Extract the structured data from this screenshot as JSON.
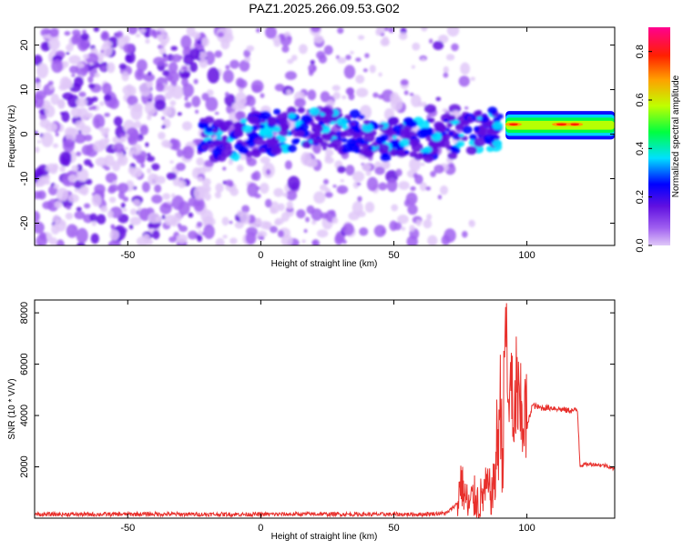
{
  "title": "PAZ1.2025.266.09.53.G02",
  "chart_data": [
    {
      "type": "heatmap",
      "title": "PAZ1.2025.266.09.53.G02",
      "xlabel": "Height of straight line (km)",
      "ylabel": "Frequency (Hz)",
      "xlim": [
        -85,
        133
      ],
      "ylim": [
        -25,
        24
      ],
      "xticks": [
        -50,
        0,
        50,
        100
      ],
      "yticks": [
        -20,
        -10,
        0,
        10,
        20
      ],
      "colorbar": {
        "label": "Normalized spectral amplitude",
        "range": [
          0,
          0.9
        ],
        "ticks": [
          0.0,
          0.2,
          0.4,
          0.6,
          0.8
        ],
        "colormap": [
          "#e0c8f8",
          "#a060f0",
          "#6010e0",
          "#0000ff",
          "#00e0ff",
          "#00ff40",
          "#c0ff00",
          "#ffa000",
          "#ff2000",
          "#ff0090"
        ]
      },
      "description_series": [
        {
          "name": "",
          "x": [
            -85,
            -20,
            20,
            60,
            80,
            90,
            100,
            110,
            120,
            133
          ],
          "y": [
            0,
            1,
            -1,
            0,
            2,
            3,
            2,
            2,
            2,
            2
          ]
        }
      ]
    },
    {
      "type": "line",
      "xlabel": "Height of straight line (km)",
      "ylabel": "SNR (10 * V/V)",
      "xlim": [
        -85,
        133
      ],
      "ylim": [
        0,
        8500
      ],
      "xticks": [
        -50,
        0,
        50,
        100
      ],
      "yticks": [
        2000,
        4000,
        6000,
        8000
      ],
      "color": "#e8302c",
      "series": [
        {
          "name": "",
          "x": [
            -85,
            -60,
            -40,
            -20,
            0,
            20,
            40,
            60,
            70,
            74,
            75,
            78,
            80,
            82,
            85,
            87,
            89,
            90,
            91,
            92,
            93,
            94,
            95,
            96,
            97,
            98,
            99,
            100,
            102,
            105,
            110,
            115,
            118,
            119,
            120,
            122,
            125,
            130,
            133
          ],
          "y": [
            150,
            150,
            160,
            150,
            150,
            160,
            150,
            150,
            200,
            600,
            1500,
            400,
            800,
            600,
            1200,
            900,
            3000,
            4500,
            2500,
            8400,
            3500,
            6500,
            2000,
            5500,
            4000,
            3800,
            4200,
            3500,
            4400,
            4300,
            4300,
            4200,
            4200,
            4200,
            2050,
            2100,
            2100,
            2050,
            1900
          ]
        }
      ]
    }
  ]
}
